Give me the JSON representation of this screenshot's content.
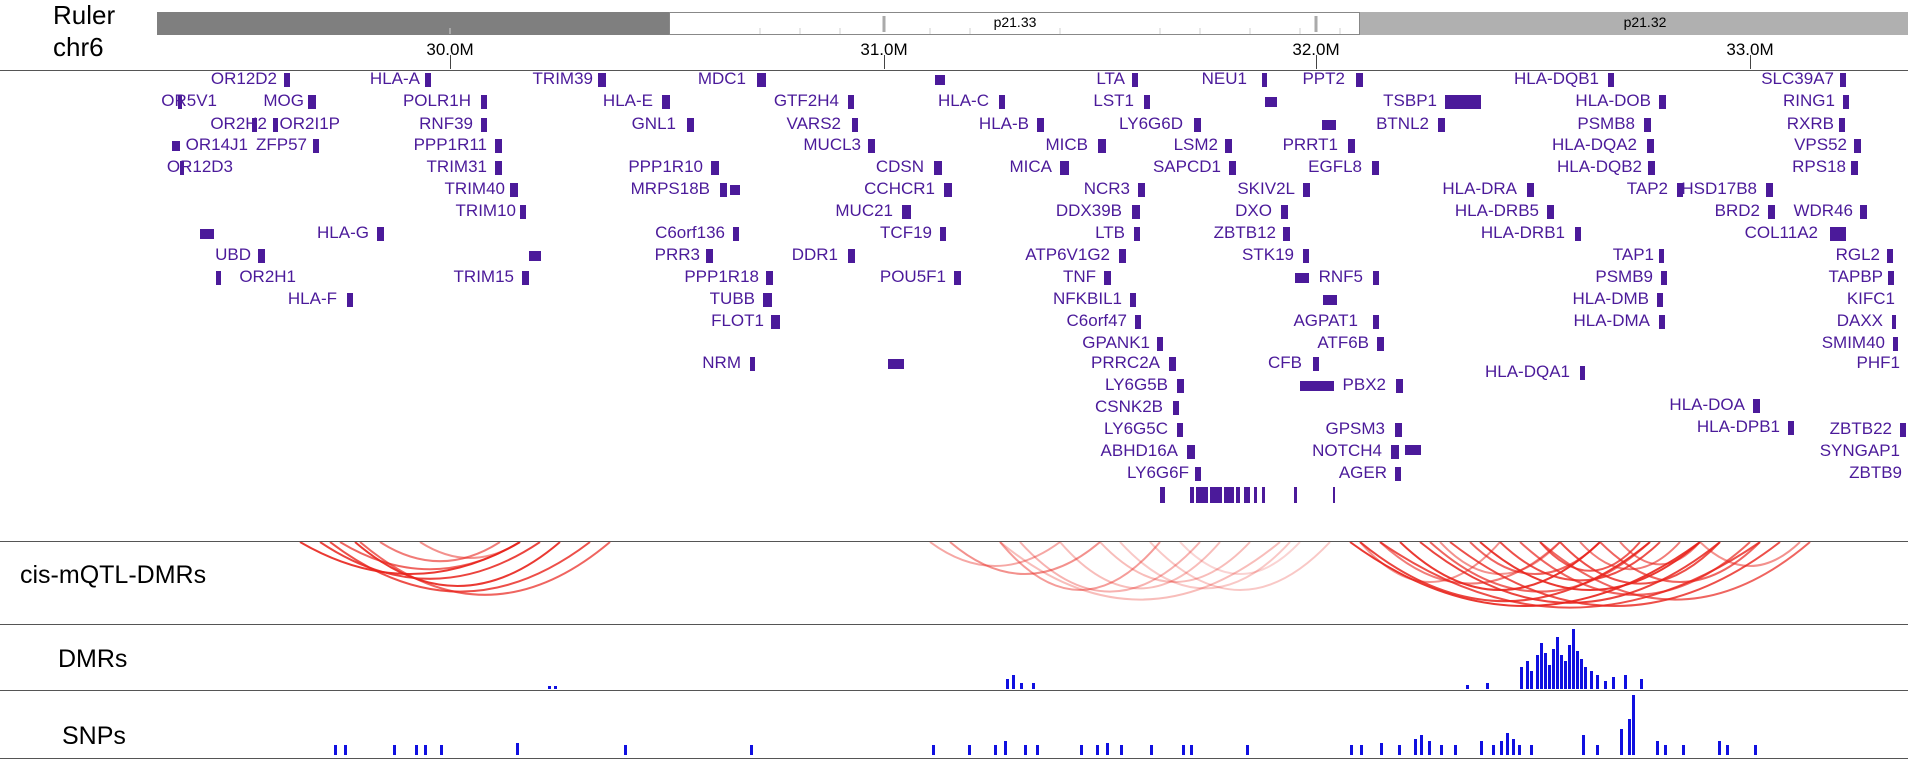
{
  "ruler": {
    "label": "Ruler",
    "chromosome": "chr6",
    "bands": [
      {
        "label": "",
        "color": "#7f7f7f"
      },
      {
        "label": "p21.33",
        "color": "#ffffff"
      },
      {
        "label": "p21.32",
        "color": "#b0b0b0"
      }
    ],
    "ticks": [
      "30.0M",
      "31.0M",
      "32.0M",
      "33.0M"
    ]
  },
  "genes": [
    "OR12D2",
    "OR5V1",
    "MOG",
    "OR2H2",
    "OR2I1P",
    "OR14J1",
    "ZFP57",
    "OR12D3",
    "HLA-G",
    "UBD",
    "OR2H1",
    "HLA-F",
    "HLA-A",
    "POLR1H",
    "RNF39",
    "PPP1R11",
    "TRIM31",
    "TRIM40",
    "TRIM10",
    "TRIM15",
    "TRIM39",
    "HLA-E",
    "GNL1",
    "PPP1R10",
    "MRPS18B",
    "C6orf136",
    "PRR3",
    "PPP1R18",
    "TUBB",
    "FLOT1",
    "NRM",
    "MDC1",
    "GTF2H4",
    "VARS2",
    "MUCL3",
    "CDSN",
    "CCHCR1",
    "MUC21",
    "TCF19",
    "DDR1",
    "POU5F1",
    "HLA-C",
    "HLA-B",
    "MICB",
    "MICA",
    "NCR3",
    "DDX39B",
    "LTB",
    "ATP6V1G2",
    "TNF",
    "NFKBIL1",
    "C6orf47",
    "GPANK1",
    "PRRC2A",
    "LY6G5B",
    "CSNK2B",
    "LY6G5C",
    "ABHD16A",
    "LY6G6F",
    "LTA",
    "LST1",
    "LY6G6D",
    "LSM2",
    "SAPCD1",
    "SKIV2L",
    "DXO",
    "ZBTB12",
    "STK19",
    "NEU1",
    "PPT2",
    "PRRT1",
    "EGFL8",
    "RNF5",
    "AGPAT1",
    "ATF6B",
    "CFB",
    "PBX2",
    "GPSM3",
    "NOTCH4",
    "AGER",
    "TSBP1",
    "BTNL2",
    "HLA-DRA",
    "HLA-DRB5",
    "HLA-DRB1",
    "HLA-DQA1",
    "HLA-DQB1",
    "HLA-DOB",
    "PSMB8",
    "HLA-DQA2",
    "HLA-DQB2",
    "TAP2",
    "TAP1",
    "PSMB9",
    "HLA-DMB",
    "HLA-DMA",
    "HLA-DOA",
    "HLA-DPB1",
    "SLC39A7",
    "RING1",
    "RXRB",
    "VPS52",
    "RPS18",
    "HSD17B8",
    "BRD2",
    "WDR46",
    "COL11A2",
    "RGL2",
    "TAPBP",
    "KIFC1",
    "DAXX",
    "SMIM40",
    "PHF1",
    "ZBTB22",
    "SYNGAP1",
    "ZBTB9"
  ],
  "tracks": {
    "mqtl_label": "cis-mQTL-DMRs",
    "dmr_label": "DMRs",
    "snp_label": "SNPs"
  },
  "colors": {
    "gene": "#4b1a9a",
    "arc": "#e8231c",
    "bar": "#1010e0"
  }
}
